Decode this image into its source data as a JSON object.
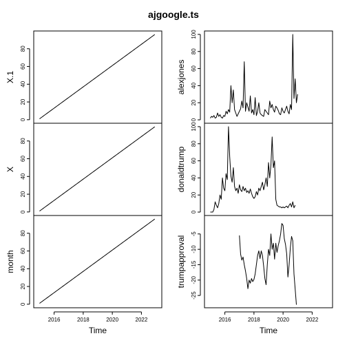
{
  "chart_data": {
    "type": "line",
    "title": "ajgoogle.ts",
    "xlabel": "Time",
    "x_tick_labels": [
      "2016",
      "2018",
      "2020",
      "2022"
    ],
    "x_ticks": [
      2016,
      2018,
      2020,
      2022
    ],
    "xlim": [
      2014.6,
      2023.4
    ],
    "panels": [
      {
        "name": "X.1",
        "ylim": [
          -4,
          100
        ],
        "y_ticks": [
          0,
          20,
          40,
          60,
          80
        ],
        "start": 2015.0,
        "step": 0.0833333,
        "values_rule": "linear 1..96",
        "values": [
          1,
          2,
          3,
          4,
          5,
          6,
          7,
          8,
          9,
          10,
          11,
          12,
          13,
          14,
          15,
          16,
          17,
          18,
          19,
          20,
          21,
          22,
          23,
          24,
          25,
          26,
          27,
          28,
          29,
          30,
          31,
          32,
          33,
          34,
          35,
          36,
          37,
          38,
          39,
          40,
          41,
          42,
          43,
          44,
          45,
          46,
          47,
          48,
          49,
          50,
          51,
          52,
          53,
          54,
          55,
          56,
          57,
          58,
          59,
          60,
          61,
          62,
          63,
          64,
          65,
          66,
          67,
          68,
          69,
          70,
          71,
          72,
          73,
          74,
          75,
          76,
          77,
          78,
          79,
          80,
          81,
          82,
          83,
          84,
          85,
          86,
          87,
          88,
          89,
          90,
          91,
          92,
          93,
          94,
          95,
          96
        ]
      },
      {
        "name": "X",
        "ylim": [
          -4,
          100
        ],
        "y_ticks": [
          0,
          20,
          40,
          60,
          80
        ],
        "start": 2015.0,
        "step": 0.0833333,
        "values": [
          1,
          2,
          3,
          4,
          5,
          6,
          7,
          8,
          9,
          10,
          11,
          12,
          13,
          14,
          15,
          16,
          17,
          18,
          19,
          20,
          21,
          22,
          23,
          24,
          25,
          26,
          27,
          28,
          29,
          30,
          31,
          32,
          33,
          34,
          35,
          36,
          37,
          38,
          39,
          40,
          41,
          42,
          43,
          44,
          45,
          46,
          47,
          48,
          49,
          50,
          51,
          52,
          53,
          54,
          55,
          56,
          57,
          58,
          59,
          60,
          61,
          62,
          63,
          64,
          65,
          66,
          67,
          68,
          69,
          70,
          71,
          72,
          73,
          74,
          75,
          76,
          77,
          78,
          79,
          80,
          81,
          82,
          83,
          84,
          85,
          86,
          87,
          88,
          89,
          90,
          91,
          92,
          93,
          94,
          95,
          96
        ]
      },
      {
        "name": "month",
        "ylim": [
          -4,
          100
        ],
        "y_ticks": [
          0,
          20,
          40,
          60,
          80
        ],
        "start": 2015.0,
        "step": 0.0833333,
        "values": [
          1,
          2,
          3,
          4,
          5,
          6,
          7,
          8,
          9,
          10,
          11,
          12,
          13,
          14,
          15,
          16,
          17,
          18,
          19,
          20,
          21,
          22,
          23,
          24,
          25,
          26,
          27,
          28,
          29,
          30,
          31,
          32,
          33,
          34,
          35,
          36,
          37,
          38,
          39,
          40,
          41,
          42,
          43,
          44,
          45,
          46,
          47,
          48,
          49,
          50,
          51,
          52,
          53,
          54,
          55,
          56,
          57,
          58,
          59,
          60,
          61,
          62,
          63,
          64,
          65,
          66,
          67,
          68,
          69,
          70,
          71,
          72,
          73,
          74,
          75,
          76,
          77,
          78,
          79,
          80,
          81,
          82,
          83,
          84,
          85,
          86,
          87,
          88,
          89,
          90,
          91,
          92,
          93,
          94,
          95,
          96
        ]
      },
      {
        "name": "alexjones",
        "ylim": [
          -4,
          104
        ],
        "y_ticks": [
          0,
          20,
          40,
          60,
          80,
          100
        ],
        "start": 2015.0,
        "step": 0.0833333,
        "values": [
          2,
          4,
          3,
          5,
          2,
          3,
          8,
          4,
          6,
          3,
          2,
          5,
          4,
          10,
          7,
          12,
          9,
          40,
          20,
          35,
          12,
          8,
          4,
          7,
          10,
          13,
          22,
          14,
          68,
          10,
          20,
          15,
          10,
          28,
          8,
          12,
          6,
          26,
          5,
          10,
          20,
          8,
          6,
          5,
          4,
          12,
          10,
          8,
          6,
          22,
          14,
          18,
          12,
          9,
          16,
          14,
          11,
          7,
          6,
          14,
          10,
          8,
          12,
          16,
          10,
          7,
          18,
          12,
          100,
          25,
          48,
          20,
          30
        ]
      },
      {
        "name": "donaldtrump",
        "ylim": [
          -4,
          104
        ],
        "y_ticks": [
          0,
          20,
          40,
          60,
          80,
          100
        ],
        "start": 2015.0,
        "step": 0.0833333,
        "values": [
          0,
          0,
          0,
          3,
          12,
          8,
          5,
          10,
          20,
          15,
          40,
          28,
          25,
          45,
          38,
          100,
          65,
          42,
          35,
          52,
          30,
          25,
          28,
          22,
          32,
          26,
          24,
          30,
          25,
          28,
          23,
          25,
          22,
          27,
          22,
          18,
          16,
          18,
          24,
          20,
          28,
          25,
          30,
          35,
          26,
          32,
          40,
          30,
          58,
          40,
          55,
          88,
          52,
          60,
          15,
          8,
          7,
          6,
          6,
          5,
          6,
          5,
          6,
          7,
          5,
          8,
          10,
          6,
          12,
          5,
          8
        ]
      },
      {
        "name": "trumpapproval",
        "ylim": [
          -29,
          1
        ],
        "y_ticks": [
          -25,
          -20,
          -15,
          -10,
          -5
        ],
        "start": 2017.0,
        "step": 0.0833333,
        "values": [
          -5.5,
          -11.6,
          -13.5,
          -12.5,
          -15,
          -17,
          -19.5,
          -22.8,
          -20,
          -21,
          -19.5,
          -20.5,
          -19.8,
          -18,
          -15,
          -12,
          -10.5,
          -13,
          -10.5,
          -12,
          -15.5,
          -19.5,
          -21.5,
          -15,
          -10,
          -12,
          -5,
          -10,
          -8,
          -13.2,
          -8,
          -11,
          -8.8,
          -7.2,
          -5,
          -1.6,
          -2.2,
          -6.5,
          -8.4,
          -11.5,
          -19,
          -15,
          -9.5,
          -5.8,
          -7.2,
          -18,
          -23,
          -28
        ]
      }
    ]
  }
}
